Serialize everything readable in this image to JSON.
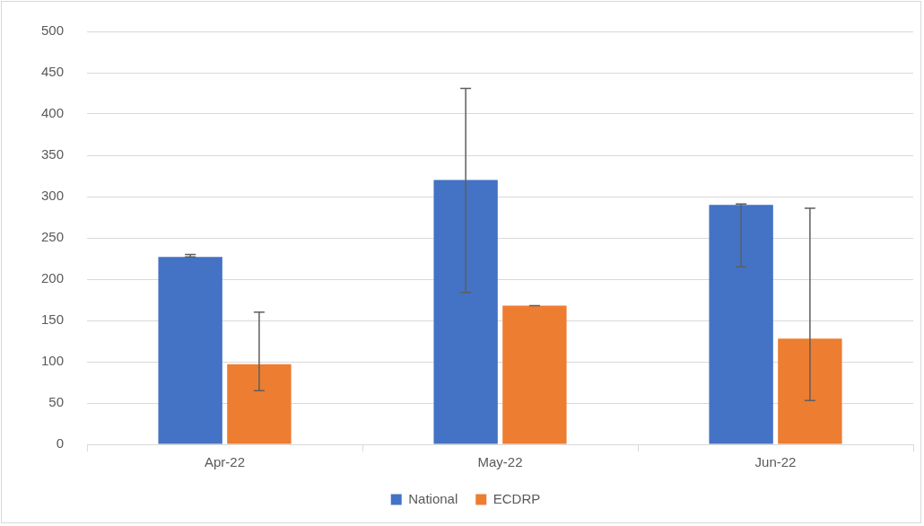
{
  "chart_data": {
    "type": "bar",
    "categories": [
      "Apr-22",
      "May-22",
      "Jun-22"
    ],
    "series": [
      {
        "name": "National",
        "color": "#4472c4",
        "values": [
          227,
          320,
          290
        ],
        "errors": [
          [
            227,
            230
          ],
          [
            184,
            431
          ],
          [
            215,
            291
          ]
        ]
      },
      {
        "name": "ECDRP",
        "color": "#ed7d31",
        "values": [
          97,
          168,
          128
        ],
        "errors": [
          [
            65,
            160
          ],
          [
            168,
            168
          ],
          [
            53,
            286
          ]
        ]
      }
    ],
    "ylim": [
      0,
      500
    ],
    "yticks": [
      0,
      50,
      100,
      150,
      200,
      250,
      300,
      350,
      400,
      450,
      500
    ],
    "grid": "y",
    "legend": "bottom"
  }
}
